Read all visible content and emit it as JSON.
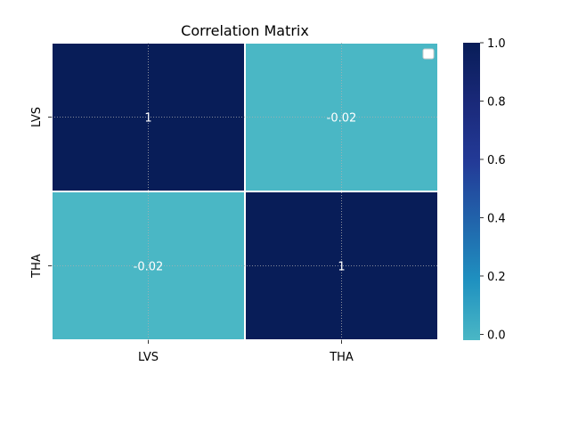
{
  "chart_data": {
    "type": "heatmap",
    "title": "Correlation Matrix",
    "xlabel": "",
    "ylabel": "",
    "x_categories": [
      "LVS",
      "THA"
    ],
    "y_categories": [
      "LVS",
      "THA"
    ],
    "values": [
      [
        1,
        -0.02
      ],
      [
        -0.02,
        1
      ]
    ],
    "cell_labels": [
      [
        "1",
        "-0.02"
      ],
      [
        "-0.02",
        "1"
      ]
    ],
    "colorbar": {
      "range": [
        -0.02,
        1.0
      ],
      "ticks": [
        0.0,
        0.2,
        0.4,
        0.6,
        0.8,
        1.0
      ],
      "tick_labels": [
        "0.0",
        "0.2",
        "0.4",
        "0.6",
        "0.8",
        "1.0"
      ],
      "colormap": "YlGnBu",
      "min_color": "#4ab7c5",
      "max_color": "#081d58"
    },
    "grid": true,
    "legend": {
      "placement": "top-right",
      "entries": []
    }
  }
}
